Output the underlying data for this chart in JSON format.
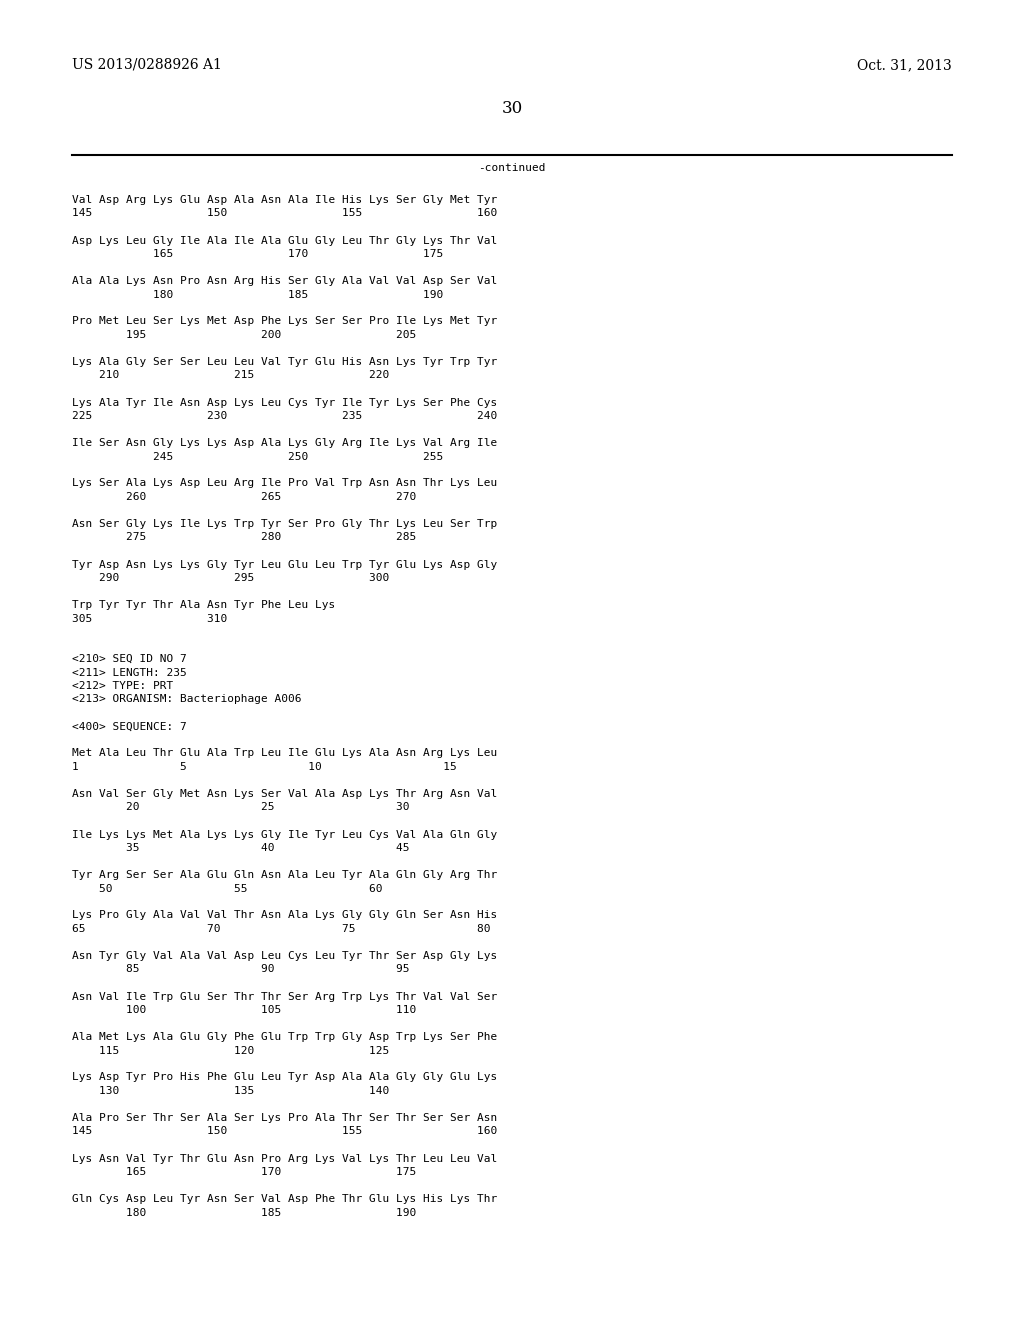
{
  "header_left": "US 2013/0288926 A1",
  "header_right": "Oct. 31, 2013",
  "page_number": "30",
  "continued_label": "-continued",
  "background_color": "#ffffff",
  "text_color": "#000000",
  "font_size": 8.0,
  "mono_font": "DejaVu Sans Mono",
  "lines": [
    "Val Asp Arg Lys Glu Asp Ala Asn Ala Ile His Lys Ser Gly Met Tyr",
    "145                 150                 155                 160",
    "",
    "Asp Lys Leu Gly Ile Ala Ile Ala Glu Gly Leu Thr Gly Lys Thr Val",
    "            165                 170                 175",
    "",
    "Ala Ala Lys Asn Pro Asn Arg His Ser Gly Ala Val Val Asp Ser Val",
    "            180                 185                 190",
    "",
    "Pro Met Leu Ser Lys Met Asp Phe Lys Ser Ser Pro Ile Lys Met Tyr",
    "        195                 200                 205",
    "",
    "Lys Ala Gly Ser Ser Leu Leu Val Tyr Glu His Asn Lys Tyr Trp Tyr",
    "    210                 215                 220",
    "",
    "Lys Ala Tyr Ile Asn Asp Lys Leu Cys Tyr Ile Tyr Lys Ser Phe Cys",
    "225                 230                 235                 240",
    "",
    "Ile Ser Asn Gly Lys Lys Asp Ala Lys Gly Arg Ile Lys Val Arg Ile",
    "            245                 250                 255",
    "",
    "Lys Ser Ala Lys Asp Leu Arg Ile Pro Val Trp Asn Asn Thr Lys Leu",
    "        260                 265                 270",
    "",
    "Asn Ser Gly Lys Ile Lys Trp Tyr Ser Pro Gly Thr Lys Leu Ser Trp",
    "        275                 280                 285",
    "",
    "Tyr Asp Asn Lys Lys Gly Tyr Leu Glu Leu Trp Tyr Glu Lys Asp Gly",
    "    290                 295                 300",
    "",
    "Trp Tyr Tyr Thr Ala Asn Tyr Phe Leu Lys",
    "305                 310",
    "",
    "",
    "<210> SEQ ID NO 7",
    "<211> LENGTH: 235",
    "<212> TYPE: PRT",
    "<213> ORGANISM: Bacteriophage A006",
    "",
    "<400> SEQUENCE: 7",
    "",
    "Met Ala Leu Thr Glu Ala Trp Leu Ile Glu Lys Ala Asn Arg Lys Leu",
    "1               5                  10                  15",
    "",
    "Asn Val Ser Gly Met Asn Lys Ser Val Ala Asp Lys Thr Arg Asn Val",
    "        20                  25                  30",
    "",
    "Ile Lys Lys Met Ala Lys Lys Gly Ile Tyr Leu Cys Val Ala Gln Gly",
    "        35                  40                  45",
    "",
    "Tyr Arg Ser Ser Ala Glu Gln Asn Ala Leu Tyr Ala Gln Gly Arg Thr",
    "    50                  55                  60",
    "",
    "Lys Pro Gly Ala Val Val Thr Asn Ala Lys Gly Gly Gln Ser Asn His",
    "65                  70                  75                  80",
    "",
    "Asn Tyr Gly Val Ala Val Asp Leu Cys Leu Tyr Thr Ser Asp Gly Lys",
    "        85                  90                  95",
    "",
    "Asn Val Ile Trp Glu Ser Thr Thr Ser Arg Trp Lys Thr Val Val Ser",
    "        100                 105                 110",
    "",
    "Ala Met Lys Ala Glu Gly Phe Glu Trp Trp Gly Asp Trp Lys Ser Phe",
    "    115                 120                 125",
    "",
    "Lys Asp Tyr Pro His Phe Glu Leu Tyr Asp Ala Ala Gly Gly Glu Lys",
    "    130                 135                 140",
    "",
    "Ala Pro Ser Thr Ser Ala Ser Lys Pro Ala Thr Ser Thr Ser Ser Asn",
    "145                 150                 155                 160",
    "",
    "Lys Asn Val Tyr Thr Glu Asn Pro Arg Lys Val Lys Thr Leu Leu Val",
    "        165                 170                 175",
    "",
    "Gln Cys Asp Leu Tyr Asn Ser Val Asp Phe Thr Glu Lys His Lys Thr",
    "        180                 185                 190"
  ]
}
